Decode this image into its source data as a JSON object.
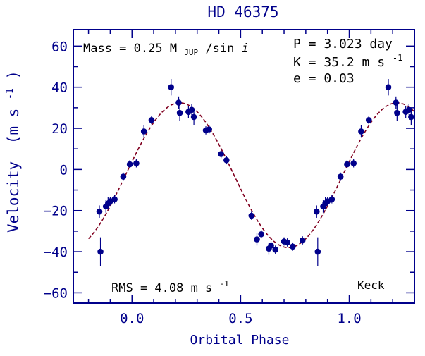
{
  "chart_data": {
    "type": "scatter",
    "title": "HD 46375",
    "xlabel": "Orbital Phase",
    "ylabel_main": "Velocity",
    "ylabel_unit": "(m s",
    "ylabel_exp": "-1",
    "ylabel_close": ")",
    "xlim": [
      -0.27,
      1.3
    ],
    "ylim": [
      -65,
      68
    ],
    "x_ticks": [
      {
        "value": 0.0,
        "label": "0.0"
      },
      {
        "value": 0.5,
        "label": "0.5"
      },
      {
        "value": 1.0,
        "label": "1.0"
      }
    ],
    "y_ticks": [
      {
        "value": -60,
        "label": "−60"
      },
      {
        "value": -40,
        "label": "−40"
      },
      {
        "value": -20,
        "label": "−20"
      },
      {
        "value": 0,
        "label": "0"
      },
      {
        "value": 20,
        "label": "20"
      },
      {
        "value": 40,
        "label": "40"
      },
      {
        "value": 60,
        "label": "60"
      }
    ],
    "annotations": {
      "mass_prefix": "Mass = 0.25 M",
      "mass_sub": "JUP",
      "mass_suffix": " /sin ",
      "mass_italic": "i",
      "period": "P = 3.023 day",
      "amplitude_prefix": "K = 35.2 m s",
      "amplitude_exp": "-1",
      "eccentricity": "e = 0.03",
      "rms_prefix": "RMS = 4.08 m s",
      "rms_exp": "-1",
      "telescope": "Keck"
    },
    "fit_curve": {
      "K": 35.2,
      "offset": -2.8,
      "phase_of_max": 0.22,
      "x_range": [
        -0.2,
        1.3
      ],
      "color": "#800020"
    },
    "points": [
      {
        "x": -0.15,
        "y": -20.5,
        "err": 3
      },
      {
        "x": -0.145,
        "y": -40,
        "err": 7
      },
      {
        "x": -0.12,
        "y": -18,
        "err": 3
      },
      {
        "x": -0.11,
        "y": -16.5,
        "err": 3
      },
      {
        "x": -0.1,
        "y": -15.5,
        "err": 2
      },
      {
        "x": -0.08,
        "y": -14.5,
        "err": 2
      },
      {
        "x": -0.04,
        "y": -3.5,
        "err": 2
      },
      {
        "x": -0.01,
        "y": 2.5,
        "err": 2
      },
      {
        "x": 0.02,
        "y": 3,
        "err": 2
      },
      {
        "x": 0.055,
        "y": 18.5,
        "err": 3
      },
      {
        "x": 0.09,
        "y": 24,
        "err": 2
      },
      {
        "x": 0.18,
        "y": 40,
        "err": 4
      },
      {
        "x": 0.215,
        "y": 32.5,
        "err": 3
      },
      {
        "x": 0.22,
        "y": 27.5,
        "err": 4
      },
      {
        "x": 0.26,
        "y": 28,
        "err": 3
      },
      {
        "x": 0.275,
        "y": 29,
        "err": 3
      },
      {
        "x": 0.285,
        "y": 25.5,
        "err": 4
      },
      {
        "x": 0.34,
        "y": 19,
        "err": 2
      },
      {
        "x": 0.355,
        "y": 19.5,
        "err": 2
      },
      {
        "x": 0.41,
        "y": 7.5,
        "err": 2
      },
      {
        "x": 0.435,
        "y": 4.5,
        "err": 2
      },
      {
        "x": 0.55,
        "y": -22.5,
        "err": 2
      },
      {
        "x": 0.575,
        "y": -34,
        "err": 3
      },
      {
        "x": 0.595,
        "y": -31.5,
        "err": 2
      },
      {
        "x": 0.63,
        "y": -38.5,
        "err": 3
      },
      {
        "x": 0.64,
        "y": -37,
        "err": 2
      },
      {
        "x": 0.66,
        "y": -39,
        "err": 2
      },
      {
        "x": 0.7,
        "y": -35,
        "err": 2
      },
      {
        "x": 0.715,
        "y": -35.5,
        "err": 2
      },
      {
        "x": 0.74,
        "y": -37.5,
        "err": 2
      },
      {
        "x": 0.785,
        "y": -34.5,
        "err": 2
      },
      {
        "x": 0.85,
        "y": -20.5,
        "err": 3
      },
      {
        "x": 0.855,
        "y": -40,
        "err": 7
      },
      {
        "x": 0.88,
        "y": -18,
        "err": 3
      },
      {
        "x": 0.89,
        "y": -16.5,
        "err": 3
      },
      {
        "x": 0.9,
        "y": -15.5,
        "err": 2
      },
      {
        "x": 0.92,
        "y": -14.5,
        "err": 2
      },
      {
        "x": 0.96,
        "y": -3.5,
        "err": 2
      },
      {
        "x": 0.99,
        "y": 2.5,
        "err": 2
      },
      {
        "x": 1.02,
        "y": 3,
        "err": 2
      },
      {
        "x": 1.055,
        "y": 18.5,
        "err": 3
      },
      {
        "x": 1.09,
        "y": 24,
        "err": 2
      },
      {
        "x": 1.18,
        "y": 40,
        "err": 4
      },
      {
        "x": 1.215,
        "y": 32.5,
        "err": 3
      },
      {
        "x": 1.22,
        "y": 27.5,
        "err": 4
      },
      {
        "x": 1.26,
        "y": 28,
        "err": 3
      },
      {
        "x": 1.275,
        "y": 29,
        "err": 3
      },
      {
        "x": 1.285,
        "y": 25.5,
        "err": 4
      }
    ],
    "grid": false,
    "marker_color": "#00008b"
  }
}
